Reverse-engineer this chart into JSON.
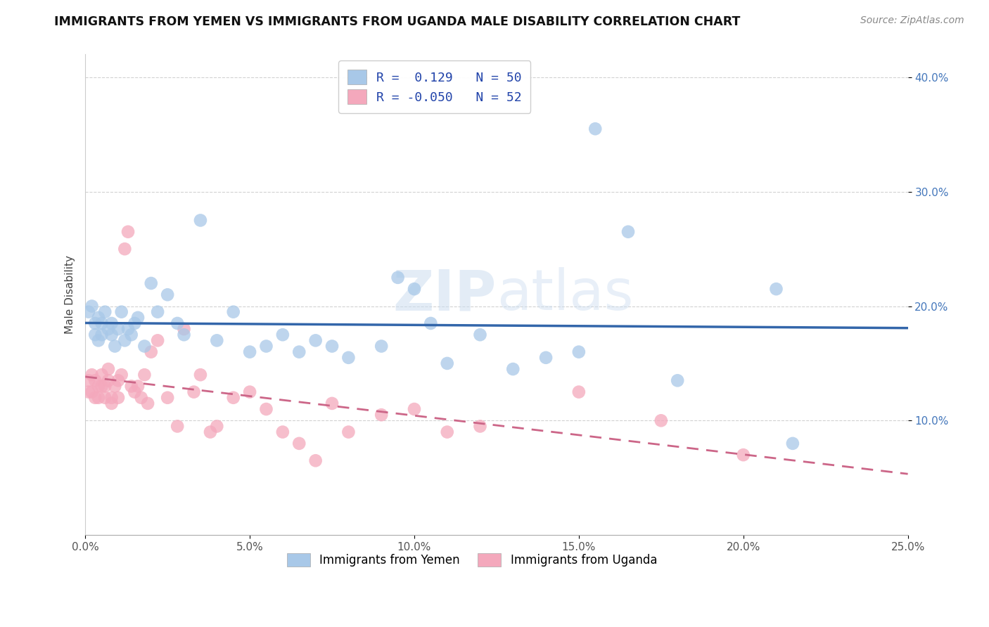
{
  "title": "IMMIGRANTS FROM YEMEN VS IMMIGRANTS FROM UGANDA MALE DISABILITY CORRELATION CHART",
  "source": "Source: ZipAtlas.com",
  "ylabel": "Male Disability",
  "legend_labels": [
    "Immigrants from Yemen",
    "Immigrants from Uganda"
  ],
  "xlim": [
    0.0,
    0.25
  ],
  "ylim": [
    0.0,
    0.42
  ],
  "xticks": [
    0.0,
    0.05,
    0.1,
    0.15,
    0.2,
    0.25
  ],
  "yticks": [
    0.1,
    0.2,
    0.3,
    0.4
  ],
  "ytick_labels": [
    "10.0%",
    "20.0%",
    "30.0%",
    "40.0%"
  ],
  "xtick_labels": [
    "0.0%",
    "5.0%",
    "10.0%",
    "15.0%",
    "20.0%",
    "25.0%"
  ],
  "R_yemen": 0.129,
  "N_yemen": 50,
  "R_uganda": -0.05,
  "N_uganda": 52,
  "blue_color": "#a8c8e8",
  "pink_color": "#f4a8bc",
  "blue_line_color": "#3366aa",
  "pink_line_color": "#cc6688",
  "yemen_x": [
    0.001,
    0.002,
    0.003,
    0.003,
    0.004,
    0.004,
    0.005,
    0.005,
    0.006,
    0.007,
    0.008,
    0.008,
    0.009,
    0.01,
    0.011,
    0.012,
    0.013,
    0.014,
    0.015,
    0.016,
    0.018,
    0.02,
    0.022,
    0.025,
    0.028,
    0.03,
    0.035,
    0.04,
    0.045,
    0.05,
    0.055,
    0.06,
    0.065,
    0.07,
    0.075,
    0.08,
    0.09,
    0.095,
    0.1,
    0.105,
    0.11,
    0.12,
    0.13,
    0.14,
    0.15,
    0.155,
    0.165,
    0.18,
    0.21,
    0.215
  ],
  "yemen_y": [
    0.195,
    0.2,
    0.185,
    0.175,
    0.19,
    0.17,
    0.185,
    0.175,
    0.195,
    0.18,
    0.175,
    0.185,
    0.165,
    0.18,
    0.195,
    0.17,
    0.18,
    0.175,
    0.185,
    0.19,
    0.165,
    0.22,
    0.195,
    0.21,
    0.185,
    0.175,
    0.275,
    0.17,
    0.195,
    0.16,
    0.165,
    0.175,
    0.16,
    0.17,
    0.165,
    0.155,
    0.165,
    0.225,
    0.215,
    0.185,
    0.15,
    0.175,
    0.145,
    0.155,
    0.16,
    0.355,
    0.265,
    0.135,
    0.215,
    0.08
  ],
  "uganda_x": [
    0.001,
    0.001,
    0.002,
    0.002,
    0.003,
    0.003,
    0.004,
    0.004,
    0.005,
    0.005,
    0.006,
    0.006,
    0.007,
    0.007,
    0.008,
    0.008,
    0.009,
    0.01,
    0.01,
    0.011,
    0.012,
    0.013,
    0.014,
    0.015,
    0.016,
    0.017,
    0.018,
    0.019,
    0.02,
    0.022,
    0.025,
    0.028,
    0.03,
    0.033,
    0.035,
    0.038,
    0.04,
    0.045,
    0.05,
    0.055,
    0.06,
    0.065,
    0.07,
    0.075,
    0.08,
    0.09,
    0.1,
    0.11,
    0.12,
    0.15,
    0.175,
    0.2
  ],
  "uganda_y": [
    0.135,
    0.125,
    0.14,
    0.125,
    0.135,
    0.12,
    0.13,
    0.12,
    0.13,
    0.14,
    0.13,
    0.12,
    0.135,
    0.145,
    0.12,
    0.115,
    0.13,
    0.12,
    0.135,
    0.14,
    0.25,
    0.265,
    0.13,
    0.125,
    0.13,
    0.12,
    0.14,
    0.115,
    0.16,
    0.17,
    0.12,
    0.095,
    0.18,
    0.125,
    0.14,
    0.09,
    0.095,
    0.12,
    0.125,
    0.11,
    0.09,
    0.08,
    0.065,
    0.115,
    0.09,
    0.105,
    0.11,
    0.09,
    0.095,
    0.125,
    0.1,
    0.07
  ]
}
